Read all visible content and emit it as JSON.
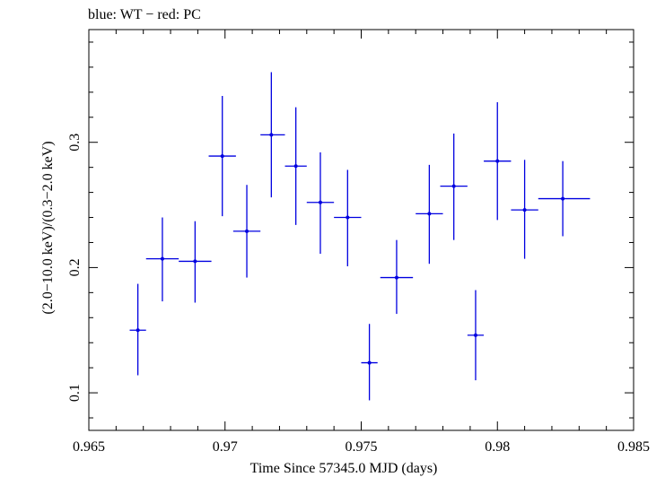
{
  "chart_data": {
    "type": "scatter",
    "title": "blue: WT − red: PC",
    "xlabel": "Time Since 57345.0 MJD (days)",
    "ylabel": "(2.0−10.0 keV)/(0.3−2.0 keV)",
    "xlim": [
      0.965,
      0.985
    ],
    "ylim": [
      0.07,
      0.39
    ],
    "xticks": [
      {
        "value": 0.965,
        "label": "0.965"
      },
      {
        "value": 0.97,
        "label": "0.97"
      },
      {
        "value": 0.975,
        "label": "0.975"
      },
      {
        "value": 0.98,
        "label": "0.98"
      },
      {
        "value": 0.985,
        "label": "0.985"
      }
    ],
    "yticks": [
      {
        "value": 0.1,
        "label": "0.1"
      },
      {
        "value": 0.2,
        "label": "0.2"
      },
      {
        "value": 0.3,
        "label": "0.3"
      }
    ],
    "series": [
      {
        "color": "#0000e0",
        "points": [
          {
            "x": 0.9668,
            "y": 0.15,
            "xlo": 0.9665,
            "xhi": 0.9671,
            "ylo": 0.114,
            "yhi": 0.187
          },
          {
            "x": 0.9677,
            "y": 0.207,
            "xlo": 0.9671,
            "xhi": 0.9683,
            "ylo": 0.173,
            "yhi": 0.24
          },
          {
            "x": 0.9689,
            "y": 0.205,
            "xlo": 0.9683,
            "xhi": 0.9695,
            "ylo": 0.172,
            "yhi": 0.237
          },
          {
            "x": 0.9699,
            "y": 0.289,
            "xlo": 0.9694,
            "xhi": 0.9704,
            "ylo": 0.241,
            "yhi": 0.337
          },
          {
            "x": 0.9708,
            "y": 0.229,
            "xlo": 0.9703,
            "xhi": 0.9713,
            "ylo": 0.192,
            "yhi": 0.266
          },
          {
            "x": 0.9717,
            "y": 0.306,
            "xlo": 0.9713,
            "xhi": 0.9722,
            "ylo": 0.256,
            "yhi": 0.356
          },
          {
            "x": 0.9726,
            "y": 0.281,
            "xlo": 0.9722,
            "xhi": 0.973,
            "ylo": 0.234,
            "yhi": 0.328
          },
          {
            "x": 0.9735,
            "y": 0.252,
            "xlo": 0.973,
            "xhi": 0.974,
            "ylo": 0.211,
            "yhi": 0.292
          },
          {
            "x": 0.9745,
            "y": 0.24,
            "xlo": 0.974,
            "xhi": 0.975,
            "ylo": 0.201,
            "yhi": 0.278
          },
          {
            "x": 0.9753,
            "y": 0.124,
            "xlo": 0.975,
            "xhi": 0.9756,
            "ylo": 0.094,
            "yhi": 0.155
          },
          {
            "x": 0.9763,
            "y": 0.192,
            "xlo": 0.9757,
            "xhi": 0.9769,
            "ylo": 0.163,
            "yhi": 0.222
          },
          {
            "x": 0.9775,
            "y": 0.243,
            "xlo": 0.977,
            "xhi": 0.978,
            "ylo": 0.203,
            "yhi": 0.282
          },
          {
            "x": 0.9784,
            "y": 0.265,
            "xlo": 0.9779,
            "xhi": 0.9789,
            "ylo": 0.222,
            "yhi": 0.307
          },
          {
            "x": 0.9792,
            "y": 0.146,
            "xlo": 0.9789,
            "xhi": 0.9795,
            "ylo": 0.11,
            "yhi": 0.182
          },
          {
            "x": 0.98,
            "y": 0.285,
            "xlo": 0.9795,
            "xhi": 0.9805,
            "ylo": 0.238,
            "yhi": 0.332
          },
          {
            "x": 0.981,
            "y": 0.246,
            "xlo": 0.9805,
            "xhi": 0.9815,
            "ylo": 0.207,
            "yhi": 0.286
          },
          {
            "x": 0.9824,
            "y": 0.255,
            "xlo": 0.9815,
            "xhi": 0.9834,
            "ylo": 0.225,
            "yhi": 0.285
          }
        ]
      }
    ]
  }
}
